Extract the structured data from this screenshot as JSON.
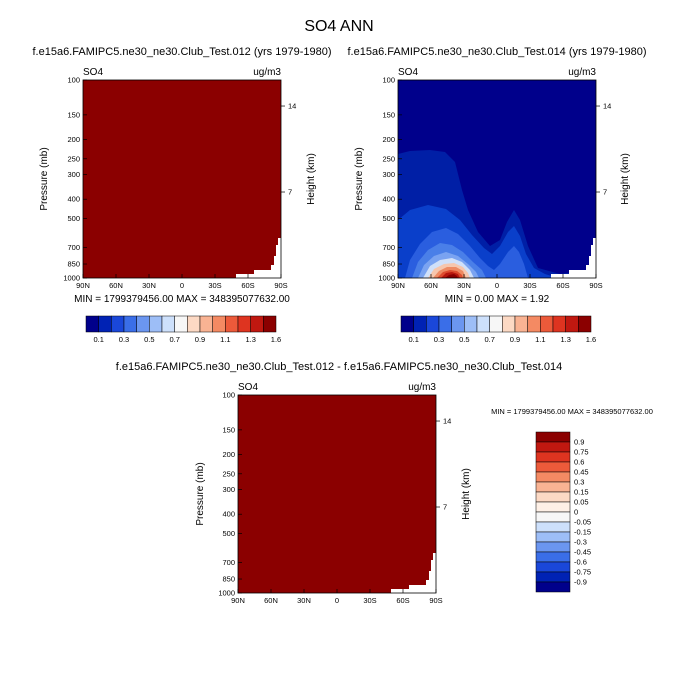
{
  "title": "SO4 ANN",
  "panels": [
    {
      "subtitle": "f.e15a6.FAMIPC5.ne30_ne30.Club_Test.012 (yrs 1979-1980)",
      "variable": "SO4",
      "units": "ug/m3",
      "ylabel": "Pressure (mb)",
      "y2label": "Height (km)",
      "stats": "MIN = 1799379456.00   MAX = 348395077632.00"
    },
    {
      "subtitle": "f.e15a6.FAMIPC5.ne30_ne30.Club_Test.014 (yrs 1979-1980)",
      "variable": "SO4",
      "units": "ug/m3",
      "ylabel": "Pressure (mb)",
      "y2label": "Height (km)",
      "stats": "MIN =  0.00  MAX =  1.92"
    },
    {
      "subtitle": "f.e15a6.FAMIPC5.ne30_ne30.Club_Test.012 - f.e15a6.FAMIPC5.ne30_ne30.Club_Test.014",
      "variable": "SO4",
      "units": "ug/m3",
      "ylabel": "Pressure (mb)",
      "y2label": "Height (km)",
      "stats": "MIN = 1799379456.00   MAX = 348395077632.00"
    }
  ],
  "chart_data": {
    "type": "heatmap",
    "x_ticks": [
      "90N",
      "60N",
      "30N",
      "0",
      "30S",
      "60S",
      "90S"
    ],
    "x_values": [
      90,
      60,
      30,
      0,
      -30,
      -60,
      -90
    ],
    "pressure_ticks": [
      "100",
      "150",
      "200",
      "250",
      "300",
      "400",
      "500",
      "700",
      "850",
      "1000"
    ],
    "pressure_values": [
      100,
      150,
      200,
      250,
      300,
      400,
      500,
      700,
      850,
      1000
    ],
    "ylim": [
      1000,
      100
    ],
    "y_scale": "log",
    "height_ticks": [
      "14",
      "7"
    ],
    "height_values_km": [
      14,
      7
    ],
    "colorbar_levels": [
      "0.1",
      "0.3",
      "0.5",
      "0.7",
      "0.9",
      "1.1",
      "1.3",
      "1.6"
    ],
    "colorbar_colors": [
      "#00008b",
      "#0022b4",
      "#1a47d9",
      "#3a6ee8",
      "#6b96f0",
      "#9dbef7",
      "#cde0fb",
      "#f7f7f7",
      "#fcd9c4",
      "#f9b393",
      "#f48a63",
      "#ec5a3a",
      "#de3420",
      "#c01810",
      "#8b0000"
    ],
    "diff_colorbar_levels": [
      "0.9",
      "0.75",
      "0.6",
      "0.45",
      "0.3",
      "0.15",
      "0.05",
      "0",
      "-0.05",
      "-0.15",
      "-0.3",
      "-0.45",
      "-0.6",
      "-0.75",
      "-0.9"
    ],
    "diff_colorbar_colors": [
      "#8b0000",
      "#c01810",
      "#de3420",
      "#ec5a3a",
      "#f48a63",
      "#f9b393",
      "#fcd9c4",
      "#fef0e6",
      "#f7f7f7",
      "#cde0fb",
      "#9dbef7",
      "#6b96f0",
      "#3a6ee8",
      "#1a47d9",
      "#0022b4",
      "#00008b"
    ],
    "field_012_color": "#8b0000",
    "field_014_colors": [
      "#00008b",
      "#001fa6",
      "#0a3fca",
      "#2a5edf",
      "#4a7fe8",
      "#7aa3f1",
      "#d0e0f9",
      "#f6c6ad",
      "#ee8a63",
      "#de4c2e",
      "#b8180e",
      "#8b0000"
    ],
    "field_014_contour_levels": [
      0.1,
      0.2,
      0.3,
      0.4,
      0.5,
      0.6,
      0.8,
      1.0,
      1.2,
      1.4,
      1.6
    ]
  }
}
